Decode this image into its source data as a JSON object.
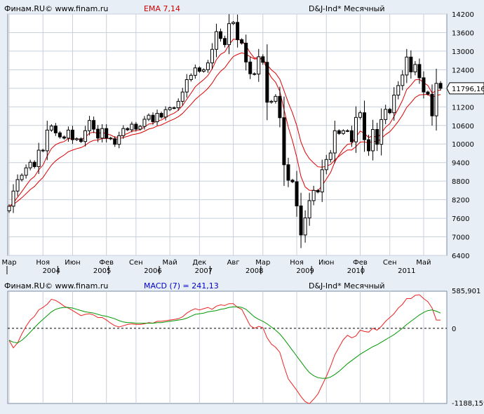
{
  "header": {
    "source": "Финам.RU© www.finam.ru",
    "indicator": "EMA 7,14",
    "instrument": "D&J-Ind* Месячный"
  },
  "macd_header": {
    "source": "Финам.RU© www.finam.ru",
    "indicator": "MACD (7) = 241,13",
    "instrument": "D&J-Ind* Месячный"
  },
  "price_axis": {
    "ticks": [
      "14200",
      "13600",
      "13000",
      "12400",
      "11800",
      "11200",
      "10600",
      "10000",
      "9400",
      "8800",
      "8200",
      "7600",
      "7000",
      "6400"
    ],
    "current_label": "11796,16"
  },
  "macd_axis": {
    "top_label": "585,901",
    "zero_label": "0",
    "bottom_label": "-1188,159"
  },
  "time_axis": {
    "months": [
      {
        "label": "Мар",
        "m": 0
      },
      {
        "label": "Ноя",
        "m": 8
      },
      {
        "label": "Июн",
        "m": 15
      },
      {
        "label": "Фев",
        "m": 23
      },
      {
        "label": "Сен",
        "m": 30
      },
      {
        "label": "Май",
        "m": 38
      },
      {
        "label": "Дек",
        "m": 45
      },
      {
        "label": "Авг",
        "m": 53
      },
      {
        "label": "Мар",
        "m": 60
      },
      {
        "label": "Ноя",
        "m": 68
      },
      {
        "label": "Июн",
        "m": 75
      },
      {
        "label": "Фев",
        "m": 83
      },
      {
        "label": "Сен",
        "m": 90
      },
      {
        "label": "Май",
        "m": 98
      }
    ],
    "years": [
      {
        "label": "2004",
        "m": 10
      },
      {
        "label": "2005",
        "m": 22
      },
      {
        "label": "2006",
        "m": 34
      },
      {
        "label": "2007",
        "m": 46
      },
      {
        "label": "2008",
        "m": 58
      },
      {
        "label": "2009",
        "m": 70
      },
      {
        "label": "2010",
        "m": 82
      },
      {
        "label": "2011",
        "m": 94
      }
    ]
  },
  "colors": {
    "background": "#e8eef6",
    "plot_bg": "#ffffff",
    "ema_color": "#dd0000",
    "macd_color": "#ee2222",
    "signal_color": "#009900",
    "candle_up": "#ffffff",
    "candle_down": "#000000",
    "current_bg": "#ffffff"
  },
  "chart_data": [
    {
      "type": "candlestick",
      "title": "D&J-Ind* Месячный",
      "period": "monthly",
      "start": "2003-03",
      "ylim": [
        6400,
        14200
      ],
      "grid": true,
      "close": [
        7990,
        8480,
        8850,
        8990,
        9230,
        9410,
        9270,
        9800,
        9780,
        10450,
        10580,
        10360,
        10230,
        10190,
        10450,
        10140,
        10170,
        10080,
        10430,
        10760,
        10480,
        10190,
        10500,
        10190,
        10170,
        9990,
        10270,
        10500,
        10460,
        10640,
        10480,
        10570,
        10800,
        10930,
        10720,
        10990,
        10870,
        11110,
        11170,
        11170,
        11380,
        11680,
        12080,
        12220,
        12460,
        12350,
        12400,
        12620,
        13060,
        13630,
        13410,
        13210,
        13890,
        13930,
        13370,
        13260,
        12650,
        12270,
        12260,
        12820,
        12640,
        11350,
        11380,
        11540,
        10850,
        9330,
        8830,
        8780,
        8000,
        7060,
        7610,
        8170,
        8500,
        8450,
        9170,
        9500,
        9710,
        10430,
        10340,
        10430,
        10430,
        10070,
        10860,
        11010,
        10140,
        9780,
        10470,
        9990,
        10790,
        11120,
        11010,
        11580,
        11890,
        12230,
        12810,
        12330,
        12570,
        12140,
        11680,
        11610,
        10910,
        11960,
        11800
      ],
      "ema_fast": [
        7980,
        8097,
        8285,
        8461,
        8654,
        8843,
        8950,
        9163,
        9317,
        9610,
        9852,
        9979,
        10042,
        10079,
        10172,
        10164,
        10166,
        10144,
        10215,
        10351,
        10383,
        10335,
        10376,
        10330,
        10290,
        10215,
        10229,
        10297,
        10337,
        10413,
        10430,
        10465,
        10549,
        10645,
        10664,
        10746,
        10777,
        10860,
        10937,
        10995,
        11091,
        11238,
        11448,
        11641,
        11846,
        11972,
        12079,
        12214,
        12426,
        12727,
        12898,
        12976,
        13205,
        13386,
        13382,
        13351,
        13176,
        12949,
        12777,
        12788,
        12751,
        12401,
        12146,
        11995,
        11708,
        11114,
        10543,
        10102,
        9576,
        8947,
        8613,
        8502,
        8501,
        8488,
        8658,
        8869,
        9079,
        9417,
        9648,
        9844,
        9990,
        10010,
        10222,
        10419,
        10349,
        10207,
        10273,
        10202,
        10349,
        10542,
        10659,
        10889,
        11139,
        11412,
        11761,
        11903,
        12070,
        12088,
        11986,
        11892,
        11646,
        11724,
        11743
      ],
      "ema_slow": [
        7980,
        8045,
        8153,
        8264,
        8393,
        8529,
        8628,
        8784,
        8917,
        9121,
        9315,
        9455,
        9559,
        9643,
        9751,
        9803,
        9852,
        9882,
        9955,
        10062,
        10118,
        10128,
        10177,
        10179,
        10178,
        10153,
        10169,
        10213,
        10246,
        10298,
        10322,
        10355,
        10414,
        10484,
        10515,
        10578,
        10617,
        10683,
        10749,
        10805,
        10882,
        10988,
        11134,
        11279,
        11436,
        11558,
        11670,
        11797,
        11965,
        12187,
        12350,
        12465,
        12655,
        12825,
        12897,
        12946,
        12906,
        12821,
        12746,
        12755,
        12740,
        12555,
        12398,
        12283,
        12092,
        11723,
        11337,
        11000,
        10600,
        10061,
        9734,
        9525,
        9389,
        9264,
        9252,
        9285,
        9342,
        9487,
        9601,
        9712,
        9807,
        9809,
        9916,
        10062,
        10072,
        10033,
        10091,
        10077,
        10178,
        10304,
        10398,
        10555,
        10734,
        10934,
        11184,
        11337,
        11501,
        11587,
        11600,
        11601,
        11509,
        11569,
        11599
      ]
    },
    {
      "type": "line",
      "title": "MACD (7) = 241,13",
      "ylim": [
        -1188.159,
        585.901
      ],
      "series": [
        {
          "name": "MACD",
          "values": [
            -190,
            -310,
            -230,
            -90,
            30,
            130,
            190,
            290,
            330,
            380,
            460,
            440,
            400,
            350,
            320,
            280,
            240,
            200,
            220,
            230,
            210,
            170,
            170,
            130,
            80,
            40,
            20,
            40,
            60,
            70,
            60,
            60,
            70,
            90,
            80,
            110,
            110,
            120,
            130,
            140,
            150,
            180,
            240,
            280,
            310,
            290,
            310,
            330,
            300,
            350,
            370,
            360,
            390,
            390,
            330,
            300,
            170,
            40,
            0,
            30,
            10,
            -150,
            -250,
            -300,
            -380,
            -600,
            -800,
            -890,
            -980,
            -1080,
            -1160,
            -1190,
            -1120,
            -1040,
            -900,
            -760,
            -600,
            -420,
            -300,
            -180,
            -110,
            -150,
            -120,
            -30,
            -50,
            -60,
            0,
            -30,
            30,
            110,
            170,
            230,
            320,
            380,
            470,
            470,
            520,
            530,
            470,
            420,
            320,
            130,
            130
          ]
        },
        {
          "name": "Signal",
          "values": [
            -190,
            -220,
            -230,
            -190,
            -130,
            -60,
            10,
            80,
            140,
            200,
            260,
            300,
            320,
            330,
            330,
            320,
            300,
            280,
            260,
            250,
            240,
            220,
            200,
            190,
            170,
            150,
            120,
            100,
            90,
            90,
            80,
            80,
            80,
            80,
            80,
            90,
            90,
            100,
            110,
            120,
            130,
            140,
            160,
            190,
            220,
            230,
            240,
            260,
            270,
            280,
            300,
            310,
            330,
            340,
            340,
            330,
            300,
            240,
            180,
            140,
            110,
            70,
            20,
            -30,
            -90,
            -170,
            -260,
            -350,
            -440,
            -530,
            -620,
            -700,
            -750,
            -780,
            -790,
            -790,
            -770,
            -730,
            -680,
            -620,
            -560,
            -510,
            -460,
            -410,
            -370,
            -330,
            -290,
            -260,
            -220,
            -180,
            -140,
            -100,
            -50,
            0,
            60,
            110,
            160,
            210,
            250,
            280,
            290,
            270,
            240
          ]
        }
      ]
    }
  ]
}
